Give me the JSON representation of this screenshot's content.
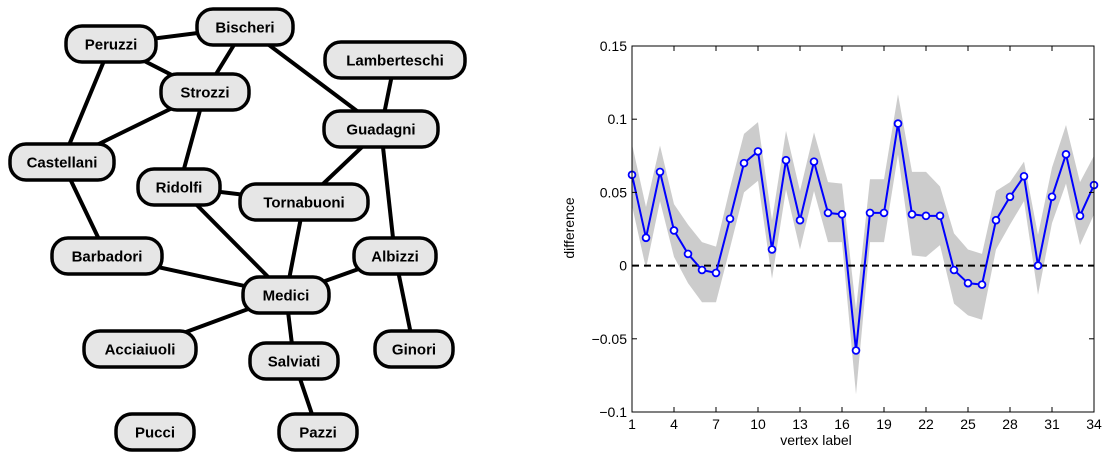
{
  "network": {
    "nodes": [
      {
        "id": "peruzzi",
        "label": "Peruzzi"
      },
      {
        "id": "bischeri",
        "label": "Bischeri"
      },
      {
        "id": "lamberteschi",
        "label": "Lamberteschi"
      },
      {
        "id": "strozzi",
        "label": "Strozzi"
      },
      {
        "id": "guadagni",
        "label": "Guadagni"
      },
      {
        "id": "castellani",
        "label": "Castellani"
      },
      {
        "id": "ridolfi",
        "label": "Ridolfi"
      },
      {
        "id": "tornabuoni",
        "label": "Tornabuoni"
      },
      {
        "id": "barbadori",
        "label": "Barbadori"
      },
      {
        "id": "albizzi",
        "label": "Albizzi"
      },
      {
        "id": "medici",
        "label": "Medici"
      },
      {
        "id": "acciaiuoli",
        "label": "Acciaiuoli"
      },
      {
        "id": "salviati",
        "label": "Salviati"
      },
      {
        "id": "ginori",
        "label": "Ginori"
      },
      {
        "id": "pucci",
        "label": "Pucci"
      },
      {
        "id": "pazzi",
        "label": "Pazzi"
      }
    ],
    "edges": [
      [
        "peruzzi",
        "bischeri"
      ],
      [
        "peruzzi",
        "strozzi"
      ],
      [
        "peruzzi",
        "castellani"
      ],
      [
        "bischeri",
        "strozzi"
      ],
      [
        "bischeri",
        "guadagni"
      ],
      [
        "lamberteschi",
        "guadagni"
      ],
      [
        "strozzi",
        "castellani"
      ],
      [
        "strozzi",
        "ridolfi"
      ],
      [
        "guadagni",
        "tornabuoni"
      ],
      [
        "guadagni",
        "albizzi"
      ],
      [
        "castellani",
        "barbadori"
      ],
      [
        "ridolfi",
        "tornabuoni"
      ],
      [
        "ridolfi",
        "medici"
      ],
      [
        "tornabuoni",
        "medici"
      ],
      [
        "barbadori",
        "medici"
      ],
      [
        "albizzi",
        "medici"
      ],
      [
        "albizzi",
        "ginori"
      ],
      [
        "medici",
        "acciaiuoli"
      ],
      [
        "medici",
        "salviati"
      ],
      [
        "salviati",
        "pazzi"
      ]
    ]
  },
  "chart_data": {
    "type": "line",
    "xlabel": "vertex label",
    "ylabel": "difference",
    "xlim": [
      1,
      34
    ],
    "ylim": [
      -0.1,
      0.15
    ],
    "xticks": [
      1,
      4,
      7,
      10,
      13,
      16,
      19,
      22,
      25,
      28,
      31,
      34
    ],
    "yticks": [
      -0.1,
      -0.05,
      0,
      0.05,
      0.1,
      0.15
    ],
    "ytick_labels": [
      "−0.1",
      "−0.05",
      "0",
      "0.05",
      "0.1",
      "0.15"
    ],
    "grid": false,
    "reference_line": {
      "y": 0,
      "style": "dashed",
      "color": "#000000"
    },
    "series": [
      {
        "color": "#0000ff",
        "marker": "circle",
        "x": [
          1,
          2,
          3,
          4,
          5,
          6,
          7,
          8,
          9,
          10,
          11,
          12,
          13,
          14,
          15,
          16,
          17,
          18,
          19,
          20,
          21,
          22,
          23,
          24,
          25,
          26,
          27,
          28,
          29,
          30,
          31,
          32,
          33,
          34
        ],
        "values": [
          0.062,
          0.019,
          0.064,
          0.024,
          0.008,
          -0.003,
          -0.005,
          0.032,
          0.07,
          0.078,
          0.011,
          0.072,
          0.031,
          0.071,
          0.036,
          0.035,
          -0.058,
          0.036,
          0.036,
          0.097,
          0.035,
          0.034,
          0.034,
          -0.003,
          -0.012,
          -0.013,
          0.031,
          0.047,
          0.061,
          0.0,
          0.047,
          0.076,
          0.034,
          0.055
        ],
        "band_upper": [
          0.083,
          0.04,
          0.082,
          0.042,
          0.028,
          0.016,
          0.013,
          0.053,
          0.09,
          0.098,
          0.031,
          0.092,
          0.051,
          0.091,
          0.057,
          0.056,
          -0.03,
          0.059,
          0.059,
          0.117,
          0.064,
          0.064,
          0.054,
          0.022,
          0.011,
          0.008,
          0.051,
          0.057,
          0.071,
          0.021,
          0.067,
          0.096,
          0.057,
          0.075
        ],
        "band_lower": [
          0.041,
          -0.002,
          0.044,
          0.006,
          -0.012,
          -0.025,
          -0.025,
          0.012,
          0.05,
          0.058,
          -0.009,
          0.052,
          0.011,
          0.051,
          0.016,
          0.016,
          -0.088,
          0.016,
          0.016,
          0.076,
          0.007,
          0.006,
          0.014,
          -0.026,
          -0.034,
          -0.037,
          0.011,
          0.028,
          0.044,
          -0.02,
          0.029,
          0.056,
          0.014,
          0.035
        ],
        "band_color": "#cccccc"
      }
    ]
  }
}
